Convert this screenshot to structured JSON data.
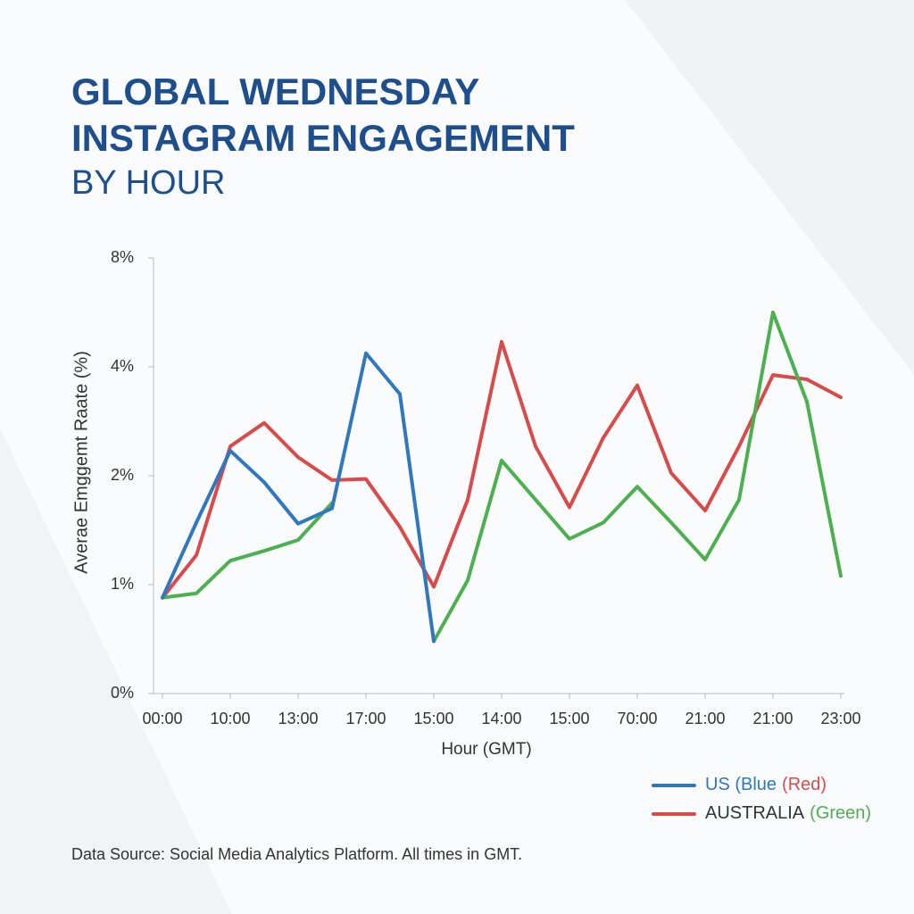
{
  "chart_data": {
    "type": "line",
    "title": [
      "GLOBAL WEDNESDAY",
      "INSTAGRAM ENGAGEMENT"
    ],
    "subtitle": "BY HOUR",
    "y_label": "Averae Emggemt Raate (%)",
    "x_label": "Hour (GMT)",
    "source": "Data Source: Social Media Analytics Platform. All times in GMT.",
    "categories": [
      "00:00",
      null,
      "10:00",
      null,
      "13:00",
      null,
      "17:00",
      null,
      "15:00",
      null,
      "14:00",
      null,
      "15:00",
      null,
      "70:00",
      null,
      "21:00",
      null,
      "21:00",
      null,
      "23:00"
    ],
    "ylim": [
      0,
      8
    ],
    "yticks": [
      {
        "value": 0,
        "label": "0%"
      },
      {
        "value": 1,
        "label": "1%"
      },
      {
        "value": 2,
        "label": "2%"
      },
      {
        "value": 4,
        "label": "4%"
      },
      {
        "value": 8,
        "label": "8%"
      }
    ],
    "series": [
      {
        "color": "#2f78bd",
        "values": [
          0.88,
          1.57,
          2.46,
          1.94,
          1.56,
          1.7,
          4.5,
          3.5,
          0.48,
          null,
          null,
          null,
          null,
          null,
          null,
          null,
          null,
          null,
          null,
          null,
          null
        ]
      },
      {
        "color": "#d94a4a",
        "values": [
          0.88,
          1.27,
          2.54,
          2.97,
          2.34,
          1.96,
          1.97,
          1.53,
          0.98,
          1.78,
          4.92,
          2.54,
          1.71,
          2.7,
          3.66,
          2.05,
          1.68,
          2.54,
          3.85,
          3.77,
          3.44
        ]
      },
      {
        "color": "#4caf50",
        "values": [
          0.88,
          0.92,
          1.22,
          1.31,
          1.41,
          1.75,
          null,
          null,
          0.48,
          1.04,
          2.28,
          1.78,
          1.42,
          1.57,
          1.9,
          1.57,
          1.23,
          1.78,
          6.0,
          3.36,
          1.08
        ]
      }
    ],
    "legend": [
      {
        "color": "#2f78bd",
        "parts": [
          {
            "text": "US (Blue",
            "color": "#2f78bd"
          },
          {
            "text": "(Red)",
            "color": "#d94a4a"
          }
        ]
      },
      {
        "color": "#d94a4a",
        "parts": [
          {
            "text": "AUSTRALIA",
            "color": "#333333"
          },
          {
            "text": "(Green)",
            "color": "#4caf50"
          }
        ]
      }
    ]
  }
}
